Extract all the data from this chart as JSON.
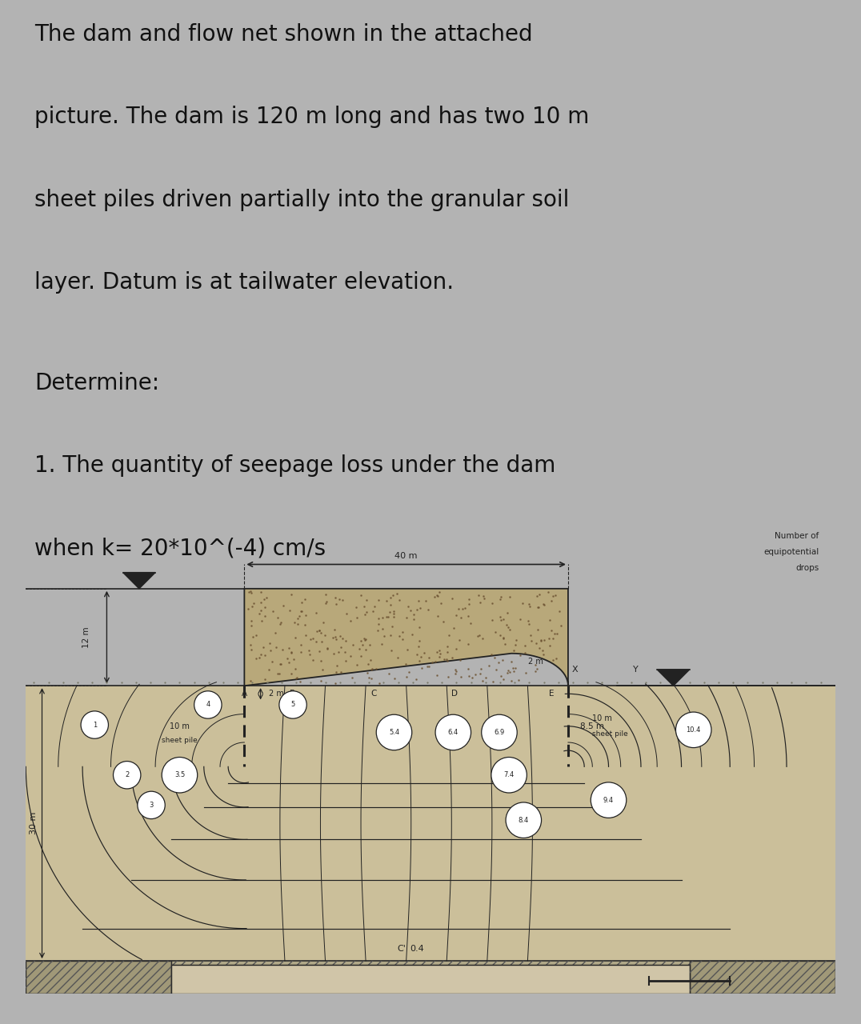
{
  "bg_color": "#b3b3b3",
  "text_color": "#111111",
  "diagram_bg": "#cfc0a0",
  "title_lines": [
    "The dam and flow net shown in the attached",
    "picture. The dam is 120 m long and has two 10 m",
    "sheet piles driven partially into the granular soil",
    "layer. Datum is at tailwater elevation."
  ],
  "determine_label": "Determine:",
  "question1": "1. The quantity of seepage loss under the dam",
  "question2": "when k= 20*10^(-4) cm/s",
  "text_fontsize": 20,
  "circled_numbers": [
    {
      "n": "1",
      "fx": 0.085,
      "fy": 0.535
    },
    {
      "n": "2",
      "fx": 0.125,
      "fy": 0.435
    },
    {
      "n": "3",
      "fx": 0.155,
      "fy": 0.375
    },
    {
      "n": "3.5",
      "fx": 0.19,
      "fy": 0.435
    },
    {
      "n": "4",
      "fx": 0.225,
      "fy": 0.575
    },
    {
      "n": "5",
      "fx": 0.33,
      "fy": 0.575
    },
    {
      "n": "5.4",
      "fx": 0.455,
      "fy": 0.52
    },
    {
      "n": "6.4",
      "fx": 0.528,
      "fy": 0.52
    },
    {
      "n": "6.9",
      "fx": 0.585,
      "fy": 0.52
    },
    {
      "n": "7.4",
      "fx": 0.597,
      "fy": 0.435
    },
    {
      "n": "8.4",
      "fx": 0.615,
      "fy": 0.345
    },
    {
      "n": "9.4",
      "fx": 0.72,
      "fy": 0.385
    },
    {
      "n": "10.4",
      "fx": 0.825,
      "fy": 0.525
    }
  ]
}
